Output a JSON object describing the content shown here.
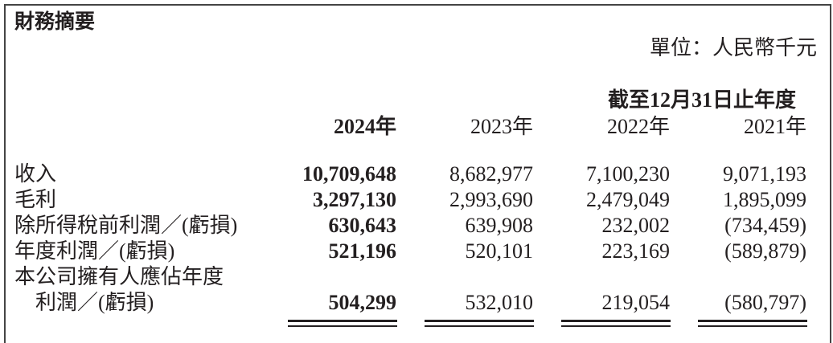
{
  "title": "財務摘要",
  "unit": "單位：人民幣千元",
  "period_header": "截至12月31日止年度",
  "years": [
    "2024年",
    "2023年",
    "2022年",
    "2021年"
  ],
  "rows": [
    {
      "label": "收入",
      "values": [
        "10,709,648",
        "8,682,977",
        "7,100,230",
        "9,071,193"
      ]
    },
    {
      "label": "毛利",
      "values": [
        "3,297,130",
        "2,993,690",
        "2,479,049",
        "1,895,099"
      ]
    },
    {
      "label": "除所得稅前利潤／(虧損)",
      "values": [
        "630,643",
        "639,908",
        "232,002",
        "(734,459)"
      ]
    },
    {
      "label": "年度利潤／(虧損)",
      "values": [
        "521,196",
        "520,101",
        "223,169",
        "(589,879)"
      ]
    },
    {
      "label": "本公司擁有人應佔年度",
      "label_cont": "利潤／(虧損)",
      "values": [
        "504,299",
        "532,010",
        "219,054",
        "(580,797)"
      ]
    }
  ]
}
